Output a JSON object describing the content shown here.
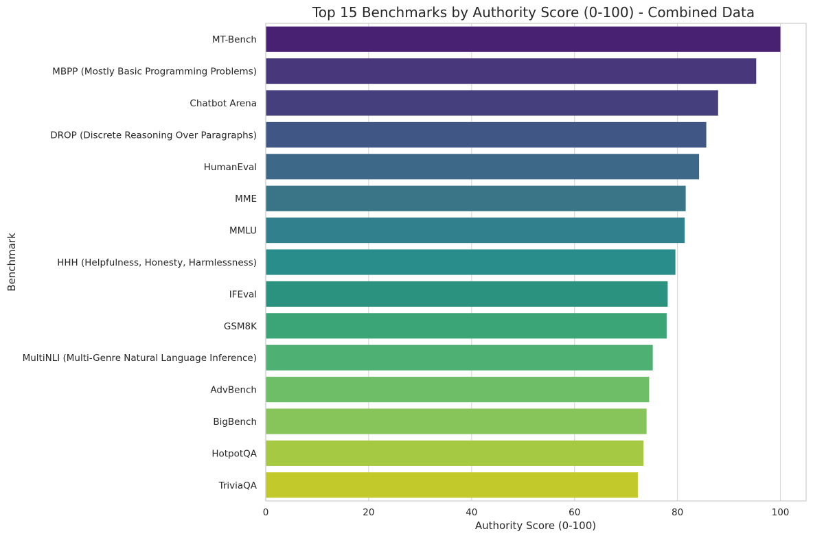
{
  "chart_data": {
    "type": "bar",
    "orientation": "horizontal",
    "title": "Top 15 Benchmarks by Authority Score (0-100) - Combined Data",
    "xlabel": "Authority Score (0-100)",
    "ylabel": "Benchmark",
    "xlim": [
      0,
      105
    ],
    "xticks": [
      0,
      20,
      40,
      60,
      80,
      100
    ],
    "grid": true,
    "categories": [
      "MT-Bench",
      "MBPP (Mostly Basic Programming Problems)",
      "Chatbot Arena",
      "DROP (Discrete Reasoning Over Paragraphs)",
      "HumanEval",
      "MME",
      "MMLU",
      "HHH (Helpfulness, Honesty, Harmlessness)",
      "IFEval",
      "GSM8K",
      "MultiNLI (Multi-Genre Natural Language Inference)",
      "AdvBench",
      "BigBench",
      "HotpotQA",
      "TriviaQA"
    ],
    "values": [
      100,
      95.3,
      87.9,
      85.6,
      84.2,
      81.6,
      81.4,
      79.6,
      78.1,
      77.9,
      75.2,
      74.5,
      74.0,
      73.4,
      72.3
    ],
    "colors": [
      "#482173",
      "#48377a",
      "#453f7e",
      "#405785",
      "#3d6888",
      "#397487",
      "#31808d",
      "#288d8b",
      "#2c9280",
      "#3ba577",
      "#4eb073",
      "#6ebe68",
      "#87c55b",
      "#a6c944",
      "#c2ca2b"
    ]
  }
}
